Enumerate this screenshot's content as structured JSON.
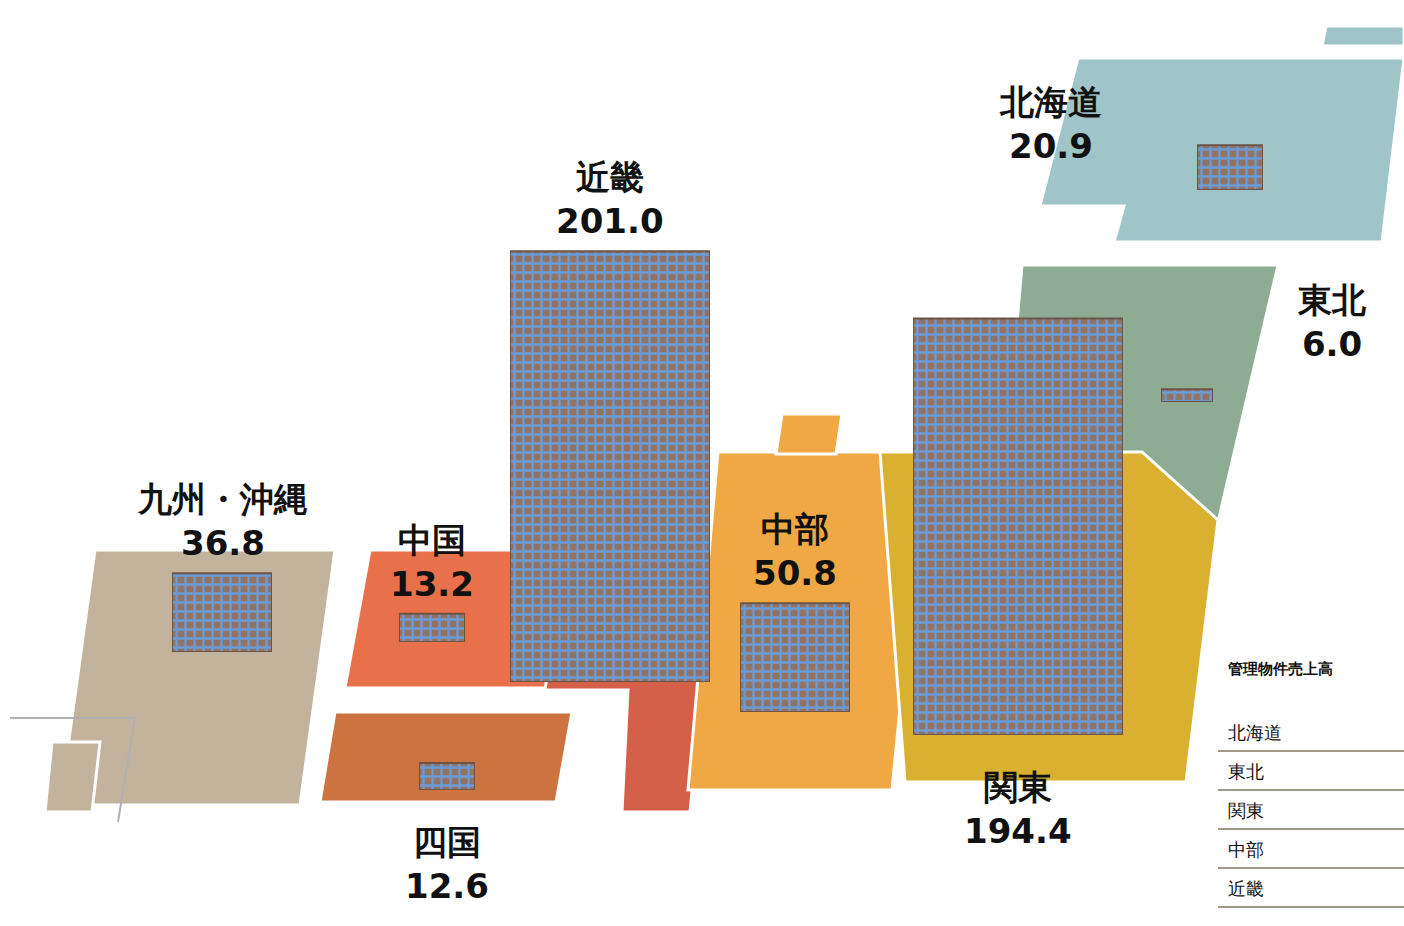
{
  "chart_data": {
    "type": "bar",
    "categories": [
      "北海道",
      "東北",
      "関東",
      "中部",
      "近畿",
      "中国",
      "四国",
      "九州・沖縄"
    ],
    "values": [
      20.9,
      6.0,
      194.4,
      50.8,
      201.0,
      13.2,
      12.6,
      36.8
    ],
    "value_labels": [
      "20.9",
      "6.0",
      "194.4",
      "50.8",
      "201.0",
      "13.2",
      "12.6",
      "36.8"
    ],
    "color": "#927363",
    "ylim": [
      0,
      210
    ],
    "tick_labels": false,
    "data_labels": true
  },
  "table": {
    "title": "管理物件売上高",
    "rows": [
      "北海道",
      "東北",
      "関東",
      "中部",
      "近畿"
    ]
  }
}
